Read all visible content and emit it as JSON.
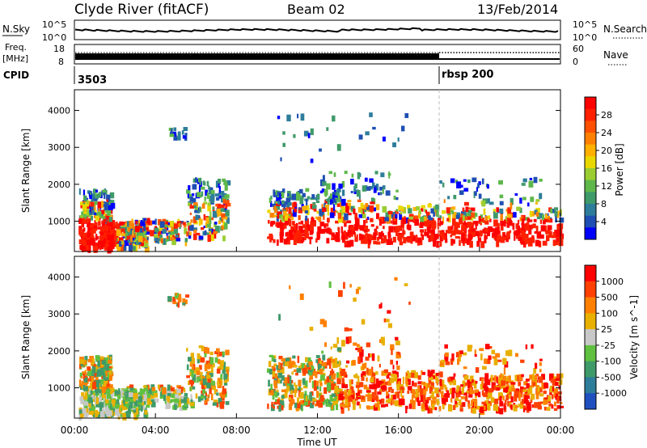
{
  "header": {
    "site": "Clyde River (fitACF)",
    "beam": "Beam 02",
    "date": "13/Feb/2014"
  },
  "top_panels": {
    "nsky": {
      "label": "N.Sky",
      "ytick_top": "10^5",
      "ytick_bottom": "10^0",
      "right_ytick_top": "10^5",
      "right_ytick_bottom": "10^0",
      "right_label": "N.Search"
    },
    "freq": {
      "label_line1": "Freq.",
      "label_line2": "[MHz]",
      "ytick_top": "18",
      "ytick_bottom": "8",
      "right_ytick_top": "60",
      "right_ytick_bottom": "0",
      "right_label": "Nave"
    },
    "cpid": {
      "label": "CPID",
      "segments": [
        "3503",
        "rbsp 200"
      ]
    }
  },
  "chart_data": [
    {
      "type": "heatmap",
      "name": "Power",
      "ylabel": "Slant Range [km]",
      "xlabel": "",
      "colorbar_label": "Power [dB]",
      "colorbar_ticks": [
        "28",
        "24",
        "20",
        "16",
        "12",
        "8",
        "4"
      ],
      "colorbar_colors": [
        "#0000ff",
        "#1f4fb2",
        "#2e7d9a",
        "#3f9a6a",
        "#5fb84a",
        "#9acd32",
        "#e8d800",
        "#ffb000",
        "#ff8000",
        "#ff5000",
        "#ff2000",
        "#ff0000"
      ],
      "yticks": [
        "4000",
        "3000",
        "2000",
        "1000"
      ],
      "ylim": [
        180,
        4560
      ],
      "xlim_hours": [
        0,
        24
      ]
    },
    {
      "type": "heatmap",
      "name": "Velocity",
      "ylabel": "Slant Range [km]",
      "xlabel": "Time UT",
      "colorbar_label": "Velocity [m s^-1]",
      "colorbar_ticks": [
        "1000",
        "500",
        "100",
        "25",
        "-25",
        "-100",
        "-500",
        "-1000"
      ],
      "colorbar_colors": [
        "#2050c0",
        "#2e7d9a",
        "#3f9a6a",
        "#60c040",
        "#c8c8c8",
        "#e8b000",
        "#ff8000",
        "#ff4000",
        "#ff0000"
      ],
      "yticks": [
        "4000",
        "3000",
        "2000",
        "1000"
      ],
      "ylim": [
        180,
        4560
      ],
      "xlim_hours": [
        0,
        24
      ],
      "xticks": [
        "00:00",
        "04:00",
        "08:00",
        "12:00",
        "16:00",
        "20:00",
        "00:00"
      ]
    }
  ]
}
